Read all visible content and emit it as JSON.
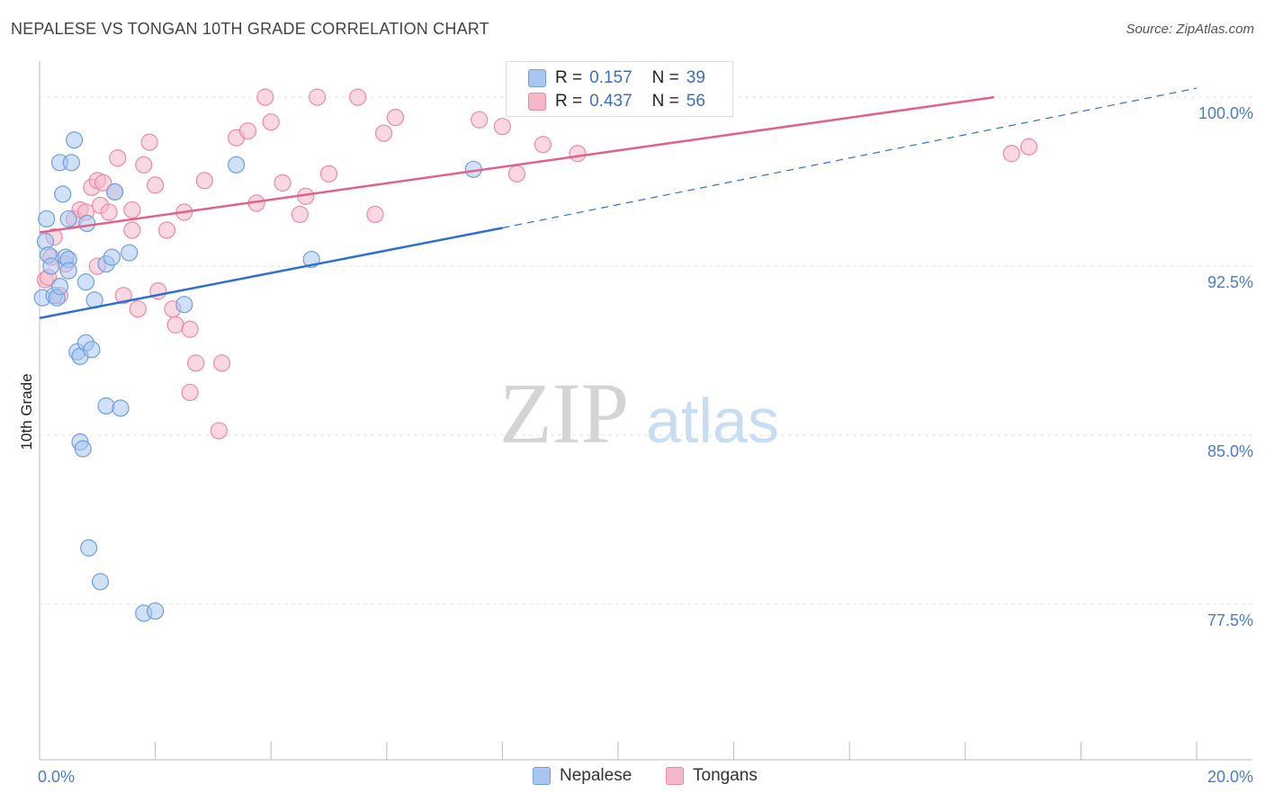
{
  "title": "NEPALESE VS TONGAN 10TH GRADE CORRELATION CHART",
  "source": "Source: ZipAtlas.com",
  "colors": {
    "nepalese_fill": "#a8c6f0",
    "nepalese_stroke": "#6f9fdc",
    "nepalese_line": "#2f6fcf",
    "tongans_fill": "#f5b8c8",
    "tongans_stroke": "#e88aa6",
    "tongans_line": "#e0628c",
    "tick_label": "#4a7cc9",
    "grid": "#e3e3e3"
  },
  "stats": {
    "nepalese": {
      "r_label": "R =",
      "r_value": "0.157",
      "n_label": "N =",
      "n_value": "39"
    },
    "tongans": {
      "r_label": "R =",
      "r_value": "0.437",
      "n_label": "N =",
      "n_value": "56"
    }
  },
  "watermark": {
    "part1": "ZIP",
    "part2": "atlas"
  },
  "chart_data": {
    "type": "scatter",
    "title": "NEPALESE VS TONGAN 10TH GRADE CORRELATION CHART",
    "xlabel": "",
    "ylabel": "10th Grade",
    "xlim": [
      0,
      20
    ],
    "ylim": [
      70.6,
      101.6
    ],
    "x_tick_labels": [
      {
        "value": 0,
        "label": "0.0%"
      },
      {
        "value": 20,
        "label": "20.0%"
      }
    ],
    "y_tick_labels": [
      {
        "value": 100,
        "label": "100.0%"
      },
      {
        "value": 92.5,
        "label": "92.5%"
      },
      {
        "value": 85,
        "label": "85.0%"
      },
      {
        "value": 77.5,
        "label": "77.5%"
      }
    ],
    "x_minor_ticks": [
      2,
      4,
      6,
      8,
      10,
      12,
      14,
      16,
      18,
      20
    ],
    "legend": [
      "Nepalese",
      "Tongans"
    ],
    "series": [
      {
        "name": "Nepalese",
        "points": [
          [
            0.05,
            91.1
          ],
          [
            0.1,
            93.6
          ],
          [
            0.12,
            94.6
          ],
          [
            0.15,
            93.0
          ],
          [
            0.2,
            92.5
          ],
          [
            0.25,
            91.2
          ],
          [
            0.3,
            91.1
          ],
          [
            0.35,
            97.1
          ],
          [
            0.35,
            91.6
          ],
          [
            0.4,
            95.7
          ],
          [
            0.45,
            92.9
          ],
          [
            0.5,
            92.8
          ],
          [
            0.5,
            94.6
          ],
          [
            0.5,
            92.3
          ],
          [
            0.55,
            97.1
          ],
          [
            0.6,
            98.1
          ],
          [
            0.65,
            88.7
          ],
          [
            0.7,
            84.7
          ],
          [
            0.7,
            88.5
          ],
          [
            0.75,
            84.4
          ],
          [
            0.8,
            91.8
          ],
          [
            0.8,
            89.1
          ],
          [
            0.82,
            94.4
          ],
          [
            0.85,
            80.0
          ],
          [
            0.9,
            88.8
          ],
          [
            0.95,
            91.0
          ],
          [
            1.05,
            78.5
          ],
          [
            1.15,
            92.6
          ],
          [
            1.15,
            86.3
          ],
          [
            1.25,
            92.9
          ],
          [
            1.3,
            95.8
          ],
          [
            1.4,
            86.2
          ],
          [
            1.55,
            93.1
          ],
          [
            1.8,
            77.1
          ],
          [
            2.0,
            77.2
          ],
          [
            2.5,
            90.8
          ],
          [
            3.4,
            97.0
          ],
          [
            4.7,
            92.8
          ],
          [
            7.5,
            96.8
          ]
        ],
        "trend": {
          "x0": 0,
          "y0": 90.2,
          "x1": 8.0,
          "y1": 94.2,
          "dash_x1": 20,
          "dash_y1": 100.4
        }
      },
      {
        "name": "Tongans",
        "points": [
          [
            0.1,
            91.9
          ],
          [
            0.15,
            92.0
          ],
          [
            0.2,
            92.9
          ],
          [
            0.25,
            93.8
          ],
          [
            0.35,
            91.2
          ],
          [
            0.45,
            92.6
          ],
          [
            0.6,
            94.6
          ],
          [
            0.7,
            95.0
          ],
          [
            0.8,
            94.9
          ],
          [
            0.9,
            96.0
          ],
          [
            1.0,
            92.5
          ],
          [
            1.0,
            96.3
          ],
          [
            1.05,
            95.2
          ],
          [
            1.1,
            96.2
          ],
          [
            1.2,
            94.9
          ],
          [
            1.3,
            95.8
          ],
          [
            1.35,
            97.3
          ],
          [
            1.45,
            91.2
          ],
          [
            1.6,
            95.0
          ],
          [
            1.6,
            94.1
          ],
          [
            1.7,
            90.6
          ],
          [
            1.8,
            97.0
          ],
          [
            1.9,
            98.0
          ],
          [
            2.0,
            96.1
          ],
          [
            2.05,
            91.4
          ],
          [
            2.2,
            94.1
          ],
          [
            2.3,
            90.6
          ],
          [
            2.35,
            89.9
          ],
          [
            2.5,
            94.9
          ],
          [
            2.6,
            89.7
          ],
          [
            2.6,
            86.9
          ],
          [
            2.7,
            88.2
          ],
          [
            2.85,
            96.3
          ],
          [
            3.1,
            85.2
          ],
          [
            3.15,
            88.2
          ],
          [
            3.4,
            98.2
          ],
          [
            3.6,
            98.5
          ],
          [
            3.75,
            95.3
          ],
          [
            3.9,
            100.0
          ],
          [
            4.0,
            98.9
          ],
          [
            4.2,
            96.2
          ],
          [
            4.5,
            94.8
          ],
          [
            4.6,
            95.6
          ],
          [
            4.8,
            100.0
          ],
          [
            5.0,
            96.6
          ],
          [
            5.5,
            100.0
          ],
          [
            5.8,
            94.8
          ],
          [
            5.95,
            98.4
          ],
          [
            6.15,
            99.1
          ],
          [
            7.6,
            99.0
          ],
          [
            8.0,
            98.7
          ],
          [
            8.25,
            96.6
          ],
          [
            8.7,
            97.9
          ],
          [
            9.3,
            97.5
          ],
          [
            16.8,
            97.5
          ],
          [
            17.1,
            97.8
          ]
        ],
        "trend": {
          "x0": 0,
          "y0": 94.0,
          "x1": 16.5,
          "y1": 100.0
        }
      }
    ]
  }
}
